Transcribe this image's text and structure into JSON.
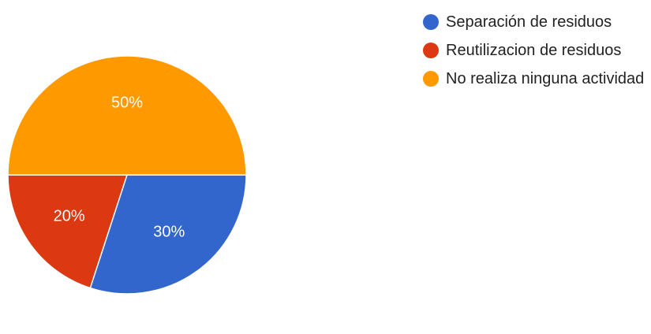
{
  "chart_data": {
    "type": "pie",
    "title": "",
    "categories": [
      "Separación de residuos",
      "Reutilizacion de residuos",
      "No realiza ninguna actividad"
    ],
    "values": [
      30,
      20,
      50
    ],
    "labels": [
      "30%",
      "20%",
      "50%"
    ],
    "colors": [
      "#3366cc",
      "#dc3912",
      "#ff9900"
    ],
    "legend_position": "right"
  },
  "legend": [
    {
      "label": "Separación de residuos",
      "color": "#3366cc"
    },
    {
      "label": "Reutilizacion de residuos",
      "color": "#dc3912"
    },
    {
      "label": "No realiza ninguna actividad",
      "color": "#ff9900"
    }
  ]
}
